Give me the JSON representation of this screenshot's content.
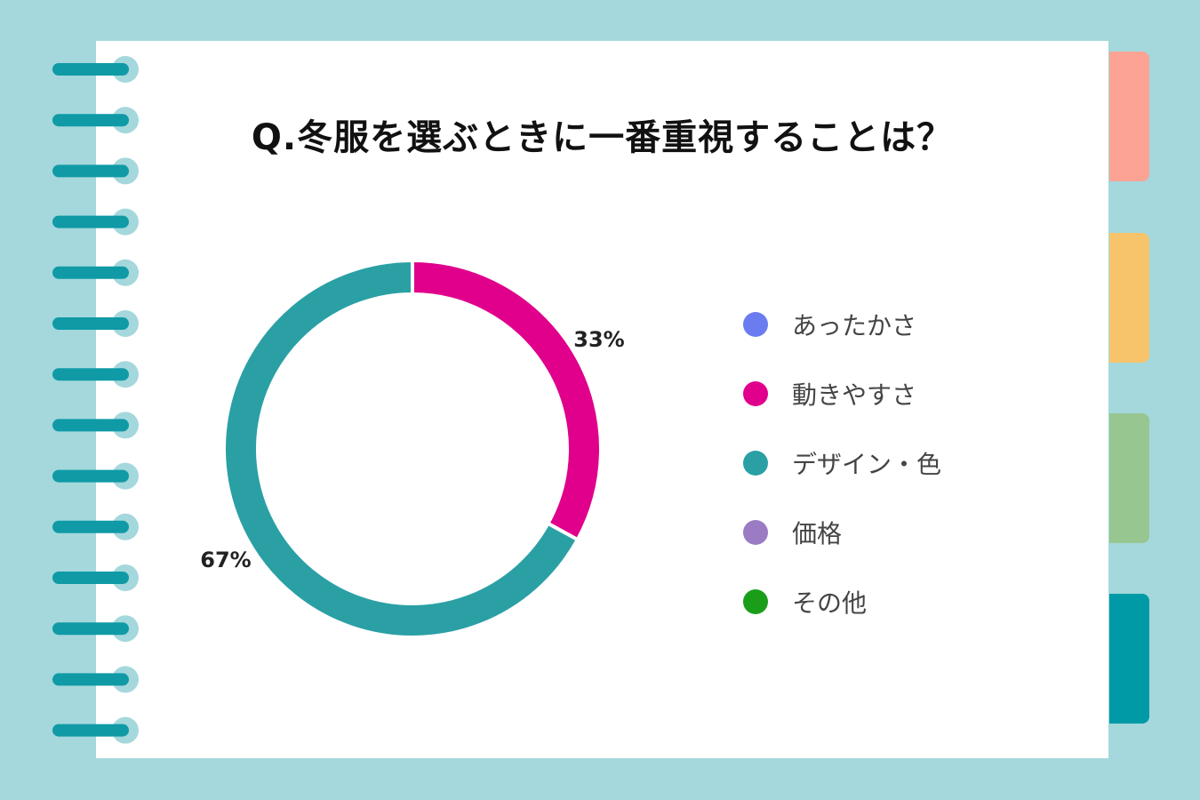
{
  "colors": {
    "background": "#a4d8dc",
    "paper": "#ffffff",
    "binding_ring": "#0f9aa6",
    "tabs": [
      "#fca393",
      "#f7c46c",
      "#97c690",
      "#0099a6"
    ]
  },
  "chart_data": {
    "type": "pie",
    "donut": true,
    "title": "Q.冬服を選ぶときに一番重視することは？",
    "legend_position": "right",
    "categories": [
      "あったかさ",
      "動きやすさ",
      "デザイン・色",
      "価格",
      "その他"
    ],
    "values": [
      0,
      33,
      67,
      0,
      0
    ],
    "data_labels": [
      "",
      "33%",
      "67%",
      "",
      ""
    ],
    "colors": [
      "#6b7cf0",
      "#e0008c",
      "#2aa0a5",
      "#9b7cc4",
      "#1a9e1a"
    ]
  }
}
